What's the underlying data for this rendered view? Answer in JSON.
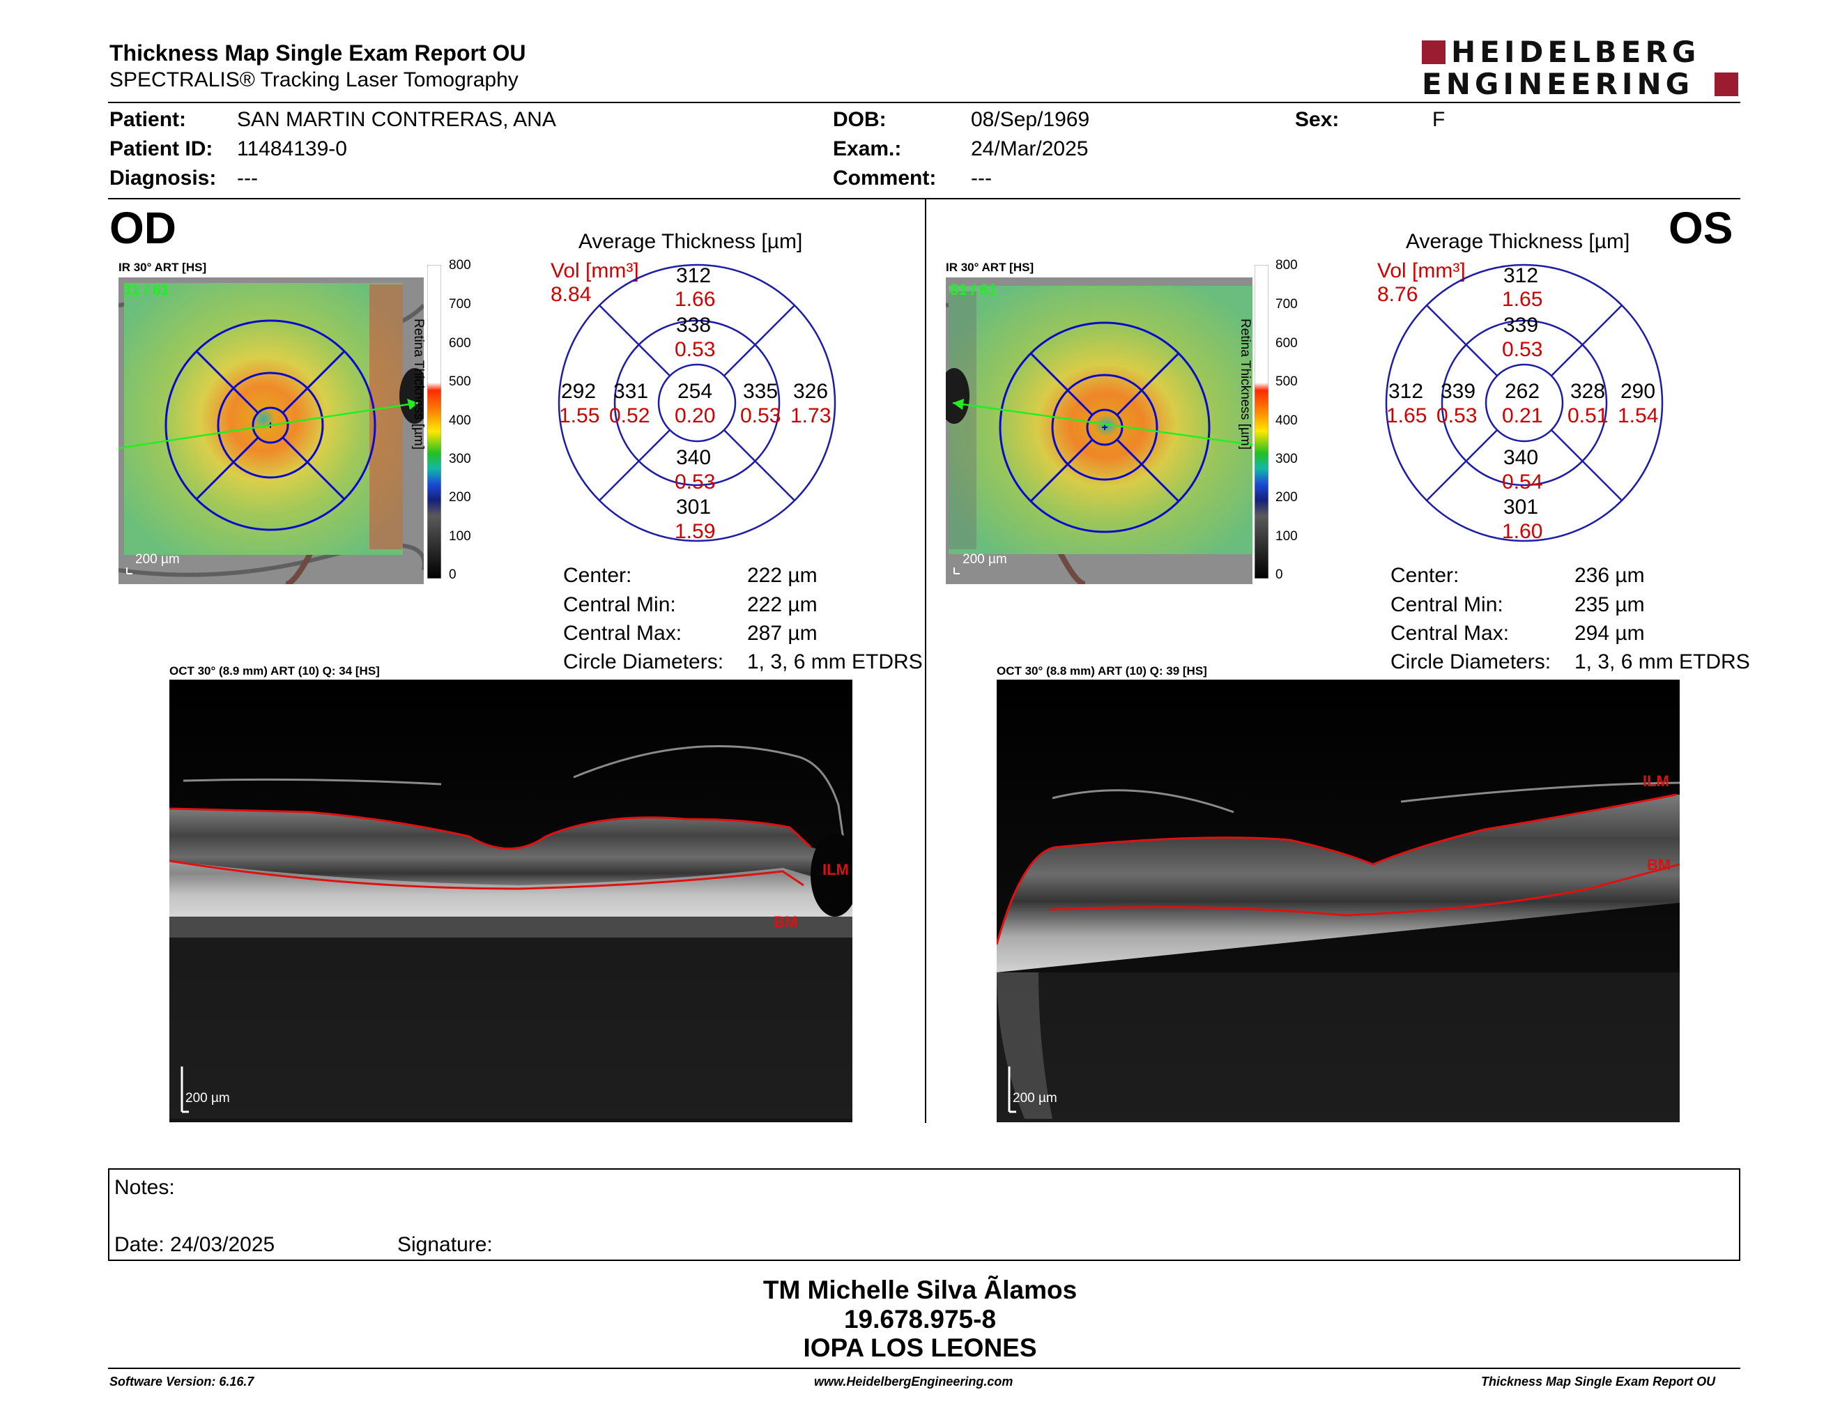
{
  "header": {
    "title": "Thickness Map Single Exam Report OU",
    "subtitle": "SPECTRALIS® Tracking Laser Tomography",
    "logo_line1": "HEIDELBERG",
    "logo_line2": "ENGINEERING",
    "logo_color": "#9b1b30"
  },
  "patient": {
    "patient_label": "Patient:",
    "patient_value": "SAN MARTIN CONTRERAS, ANA",
    "id_label": "Patient ID:",
    "id_value": "11484139-0",
    "diagnosis_label": "Diagnosis:",
    "diagnosis_value": "---",
    "dob_label": "DOB:",
    "dob_value": "08/Sep/1969",
    "exam_label": "Exam.:",
    "exam_value": "24/Mar/2025",
    "comment_label": "Comment:",
    "comment_value": "---",
    "sex_label": "Sex:",
    "sex_value": "F"
  },
  "colorbar": {
    "ticks": [
      "800",
      "700",
      "600",
      "500",
      "400",
      "300",
      "200",
      "100",
      "0"
    ],
    "axis_label": "Retina Thickness [µm]"
  },
  "od": {
    "eye_label": "OD",
    "ir_caption": "IR 30° ART [HS]",
    "ir_frames": "31 / 61",
    "ir_scale": "200 µm",
    "avg_title": "Average Thickness [µm]",
    "vol_label": "Vol [mm³]",
    "vol_total": "8.84",
    "sectors": {
      "center": {
        "thickness": "254",
        "volume": "0.20"
      },
      "inner_superior": {
        "thickness": "338",
        "volume": "0.53"
      },
      "inner_inferior": {
        "thickness": "340",
        "volume": "0.53"
      },
      "inner_left": {
        "thickness": "331",
        "volume": "0.52"
      },
      "inner_right": {
        "thickness": "335",
        "volume": "0.53"
      },
      "outer_superior": {
        "thickness": "312",
        "volume": "1.66"
      },
      "outer_inferior": {
        "thickness": "301",
        "volume": "1.59"
      },
      "outer_left": {
        "thickness": "292",
        "volume": "1.55"
      },
      "outer_right": {
        "thickness": "326",
        "volume": "1.73"
      }
    },
    "stats": {
      "center_label": "Center:",
      "center_value": "222 µm",
      "min_label": "Central Min:",
      "min_value": "222 µm",
      "max_label": "Central Max:",
      "max_value": "287 µm",
      "diam_label": "Circle Diameters:",
      "diam_value": "1, 3, 6 mm ETDRS"
    },
    "oct_caption": "OCT 30° (8.9 mm) ART (10) Q: 34 [HS]",
    "oct_scale": "200 µm",
    "ilm_label": "ILM",
    "bm_label": "BM"
  },
  "os": {
    "eye_label": "OS",
    "ir_caption": "IR 30° ART [HS]",
    "ir_frames": "31 / 61",
    "ir_scale": "200 µm",
    "avg_title": "Average Thickness [µm]",
    "vol_label": "Vol [mm³]",
    "vol_total": "8.76",
    "sectors": {
      "center": {
        "thickness": "262",
        "volume": "0.21"
      },
      "inner_superior": {
        "thickness": "339",
        "volume": "0.53"
      },
      "inner_inferior": {
        "thickness": "340",
        "volume": "0.54"
      },
      "inner_left": {
        "thickness": "339",
        "volume": "0.53"
      },
      "inner_right": {
        "thickness": "328",
        "volume": "0.51"
      },
      "outer_superior": {
        "thickness": "312",
        "volume": "1.65"
      },
      "outer_inferior": {
        "thickness": "301",
        "volume": "1.60"
      },
      "outer_left": {
        "thickness": "312",
        "volume": "1.65"
      },
      "outer_right": {
        "thickness": "290",
        "volume": "1.54"
      }
    },
    "stats": {
      "center_label": "Center:",
      "center_value": "236 µm",
      "min_label": "Central Min:",
      "min_value": "235 µm",
      "max_label": "Central Max:",
      "max_value": "294 µm",
      "diam_label": "Circle Diameters:",
      "diam_value": "1, 3, 6 mm ETDRS"
    },
    "oct_caption": "OCT 30° (8.8 mm) ART (10) Q: 39 [HS]",
    "oct_scale": "200 µm",
    "ilm_label": "ILM",
    "bm_label": "BM"
  },
  "notes": {
    "notes_label": "Notes:",
    "date_label": "Date: 24/03/2025",
    "signature_label": "Signature:"
  },
  "signer": {
    "name": "TM Michelle Silva Ãlamos",
    "rut": "19.678.975-8",
    "institution": "IOPA LOS LEONES"
  },
  "footer": {
    "software": "Software Version: 6.16.7",
    "website": "www.HeidelbergEngineering.com",
    "report": "Thickness Map Single Exam Report OU"
  }
}
